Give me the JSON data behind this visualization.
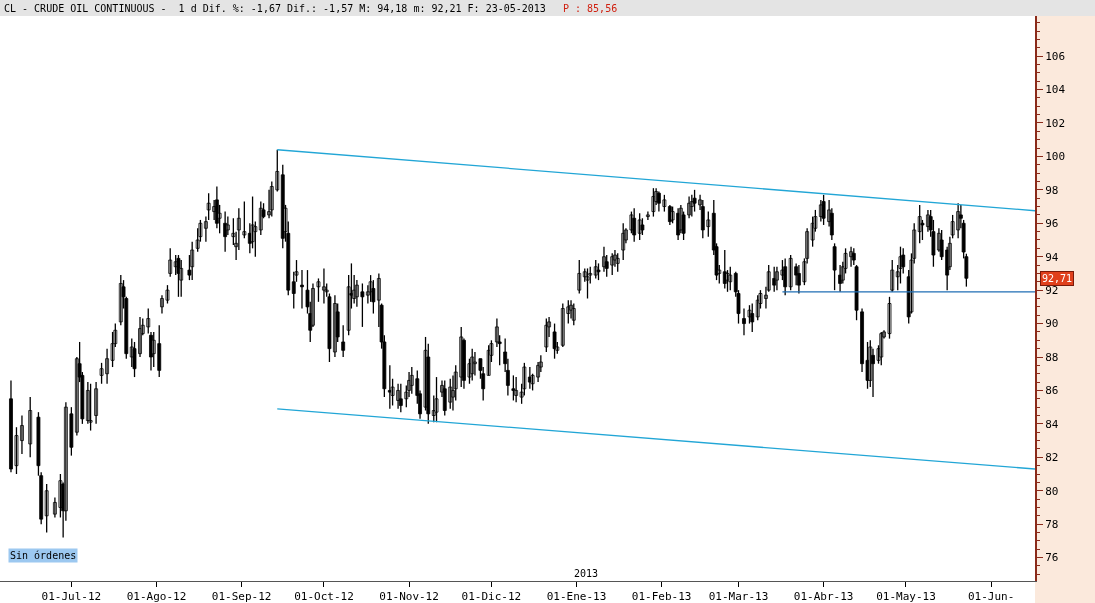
{
  "chart_data": {
    "type": "candlestick",
    "title": "CL - CRUDE OIL CONTINUOUS -  1 d Dif. %: -1,67 Dif.: -1,57 M: 94,18 m: 92,21 F: 23-05-2013",
    "subtitle": "P : 85,56",
    "x": [
      "2012-06-09",
      "2012-06-11",
      "2012-06-13",
      "2012-06-16",
      "2012-06-19",
      "2012-06-20",
      "2012-06-22",
      "2012-06-25",
      "2012-06-27",
      "2012-06-28",
      "2012-06-29",
      "2012-07-01",
      "2012-07-03",
      "2012-07-04",
      "2012-07-05",
      "2012-07-07",
      "2012-07-08",
      "2012-07-10",
      "2012-07-12",
      "2012-07-14",
      "2012-07-16",
      "2012-07-17",
      "2012-07-19",
      "2012-07-20",
      "2012-07-21",
      "2012-07-23",
      "2012-07-24",
      "2012-07-26",
      "2012-07-27",
      "2012-07-29",
      "2012-07-30",
      "2012-07-31",
      "2012-08-02",
      "2012-08-03",
      "2012-08-05",
      "2012-08-06",
      "2012-08-08",
      "2012-08-09",
      "2012-08-10",
      "2012-08-13",
      "2012-08-14",
      "2012-08-16",
      "2012-08-17",
      "2012-08-19",
      "2012-08-20",
      "2012-08-22",
      "2012-08-23",
      "2012-08-24",
      "2012-08-26",
      "2012-08-27",
      "2012-08-29",
      "2012-08-30",
      "2012-08-31",
      "2012-09-02",
      "2012-09-04",
      "2012-09-05",
      "2012-09-06",
      "2012-09-08",
      "2012-09-09",
      "2012-09-11",
      "2012-09-12",
      "2012-09-14",
      "2012-09-16",
      "2012-09-17",
      "2012-09-18",
      "2012-09-20",
      "2012-09-21",
      "2012-09-23",
      "2012-09-25",
      "2012-09-26",
      "2012-09-27",
      "2012-09-29",
      "2012-10-01",
      "2012-10-02",
      "2012-10-03",
      "2012-10-05",
      "2012-10-06",
      "2012-10-08",
      "2012-10-10",
      "2012-10-11",
      "2012-10-12",
      "2012-10-13",
      "2012-10-15",
      "2012-10-17",
      "2012-10-18",
      "2012-10-19",
      "2012-10-21",
      "2012-10-22",
      "2012-10-23",
      "2012-10-25",
      "2012-10-26",
      "2012-10-28",
      "2012-10-29",
      "2012-10-31",
      "2012-11-01",
      "2012-11-02",
      "2012-11-04",
      "2012-11-05",
      "2012-11-07",
      "2012-11-08",
      "2012-11-10",
      "2012-11-11",
      "2012-11-13",
      "2012-11-14",
      "2012-11-16",
      "2012-11-17",
      "2012-11-18",
      "2012-11-20",
      "2012-11-21",
      "2012-11-23",
      "2012-11-24",
      "2012-11-25",
      "2012-11-27",
      "2012-11-28",
      "2012-11-30",
      "2012-12-01",
      "2012-12-03",
      "2012-12-04",
      "2012-12-06",
      "2012-12-07",
      "2012-12-09",
      "2012-12-10",
      "2012-12-12",
      "2012-12-13",
      "2012-12-15",
      "2012-12-16",
      "2012-12-18",
      "2012-12-19",
      "2012-12-21",
      "2012-12-22",
      "2012-12-24",
      "2012-12-25",
      "2012-12-27",
      "2012-12-29",
      "2012-12-30",
      "2012-12-31",
      "2013-01-02",
      "2013-01-04",
      "2013-01-05",
      "2013-01-06",
      "2013-01-08",
      "2013-01-09",
      "2013-01-11",
      "2013-01-12",
      "2013-01-14",
      "2013-01-15",
      "2013-01-16",
      "2013-01-18",
      "2013-01-19",
      "2013-01-21",
      "2013-01-22",
      "2013-01-24",
      "2013-01-25",
      "2013-01-27",
      "2013-01-29",
      "2013-01-30",
      "2013-01-31",
      "2013-02-02",
      "2013-02-04",
      "2013-02-05",
      "2013-02-07",
      "2013-02-08",
      "2013-02-09",
      "2013-02-11",
      "2013-02-12",
      "2013-02-13",
      "2013-02-15",
      "2013-02-16",
      "2013-02-18",
      "2013-02-20",
      "2013-02-21",
      "2013-02-22",
      "2013-02-24",
      "2013-02-25",
      "2013-02-26",
      "2013-02-28",
      "2013-03-01",
      "2013-03-03",
      "2013-03-05",
      "2013-03-06",
      "2013-03-08",
      "2013-03-09",
      "2013-03-11",
      "2013-03-12",
      "2013-03-14",
      "2013-03-15",
      "2013-03-17",
      "2013-03-18",
      "2013-03-20",
      "2013-03-22",
      "2013-03-23",
      "2013-03-25",
      "2013-03-26",
      "2013-03-28",
      "2013-03-29",
      "2013-03-31",
      "2013-04-01",
      "2013-04-03",
      "2013-04-04",
      "2013-04-05",
      "2013-04-07",
      "2013-04-08",
      "2013-04-09",
      "2013-04-11",
      "2013-04-12",
      "2013-04-13",
      "2013-04-15",
      "2013-04-17",
      "2013-04-18",
      "2013-04-19",
      "2013-04-21",
      "2013-04-22",
      "2013-04-23",
      "2013-04-25",
      "2013-04-26",
      "2013-04-28",
      "2013-04-29",
      "2013-04-30",
      "2013-05-02",
      "2013-05-03",
      "2013-05-04",
      "2013-05-06",
      "2013-05-07",
      "2013-05-09",
      "2013-05-10",
      "2013-05-11",
      "2013-05-13",
      "2013-05-14",
      "2013-05-16",
      "2013-05-17",
      "2013-05-18",
      "2013-05-20",
      "2013-05-21",
      "2013-05-22",
      "2013-05-23"
    ],
    "ohlc": [
      [
        85.5,
        86.6,
        81.1,
        81.3
      ],
      [
        81.5,
        83.8,
        81.0,
        83.3
      ],
      [
        83.0,
        84.5,
        82.2,
        83.9
      ],
      [
        82.8,
        85.6,
        82.0,
        84.8
      ],
      [
        84.4,
        84.7,
        80.9,
        81.5
      ],
      [
        80.9,
        81.1,
        78.0,
        78.3
      ],
      [
        78.5,
        80.4,
        77.5,
        80.0
      ],
      [
        78.6,
        79.6,
        78.4,
        79.3
      ],
      [
        79.0,
        81.0,
        78.4,
        80.6
      ],
      [
        80.4,
        80.5,
        77.2,
        78.8
      ],
      [
        78.8,
        85.3,
        78.2,
        85.0
      ],
      [
        84.6,
        85.0,
        82.1,
        82.6
      ],
      [
        83.5,
        88.0,
        83.3,
        87.9
      ],
      [
        87.6,
        88.9,
        86.5,
        86.8
      ],
      [
        86.9,
        87.1,
        84.0,
        84.3
      ],
      [
        84.2,
        86.5,
        84.0,
        86.0
      ],
      [
        84.1,
        86.4,
        83.6,
        84.2
      ],
      [
        84.5,
        86.5,
        84.0,
        86.1
      ],
      [
        86.9,
        87.65,
        86.4,
        87.3
      ],
      [
        87.0,
        88.5,
        86.4,
        87.9
      ],
      [
        87.8,
        89.5,
        87.4,
        88.8
      ],
      [
        88.8,
        90.0,
        88.6,
        89.6
      ],
      [
        90.1,
        92.9,
        89.9,
        92.4
      ],
      [
        92.2,
        92.6,
        90.9,
        91.6
      ],
      [
        91.5,
        91.6,
        87.9,
        88.2
      ],
      [
        88.0,
        89.1,
        87.4,
        88.6
      ],
      [
        88.5,
        88.9,
        86.8,
        87.3
      ],
      [
        88.2,
        90.4,
        88.0,
        89.7
      ],
      [
        89.4,
        90.3,
        89.3,
        89.9
      ],
      [
        89.8,
        90.9,
        89.4,
        90.3
      ],
      [
        89.3,
        89.5,
        87.2,
        88.0
      ],
      [
        88.2,
        89.5,
        87.4,
        89.0
      ],
      [
        88.8,
        89.9,
        86.8,
        87.2
      ],
      [
        91.0,
        91.7,
        90.6,
        91.5
      ],
      [
        91.4,
        92.3,
        91.2,
        92.0
      ],
      [
        93.0,
        94.5,
        92.8,
        93.8
      ],
      [
        93.4,
        94.1,
        92.9,
        93.7
      ],
      [
        93.9,
        94.1,
        91.6,
        93.0
      ],
      [
        92.6,
        93.8,
        91.6,
        93.3
      ],
      [
        93.2,
        94.1,
        92.6,
        92.9
      ],
      [
        93.4,
        94.9,
        92.6,
        94.4
      ],
      [
        94.5,
        95.7,
        94.3,
        95.0
      ],
      [
        95.2,
        96.2,
        94.9,
        96.0
      ],
      [
        95.7,
        96.4,
        94.9,
        96.1
      ],
      [
        96.8,
        97.8,
        96.2,
        97.2
      ],
      [
        96.7,
        97.4,
        96.2,
        97.0
      ],
      [
        97.4,
        98.2,
        95.7,
        96.0
      ],
      [
        96.3,
        97.1,
        95.4,
        96.6
      ],
      [
        96.0,
        96.7,
        94.3,
        95.2
      ],
      [
        95.6,
        96.4,
        95.3,
        95.9
      ],
      [
        95.2,
        96.3,
        94.7,
        95.4
      ],
      [
        94.6,
        95.5,
        93.8,
        94.8
      ],
      [
        95.6,
        96.9,
        94.4,
        96.3
      ],
      [
        95.3,
        97.3,
        95.1,
        95.5
      ],
      [
        95.4,
        96.0,
        94.2,
        94.8
      ],
      [
        94.9,
        97.6,
        94.5,
        95.9
      ],
      [
        95.5,
        96.1,
        94.0,
        95.8
      ],
      [
        95.6,
        97.3,
        95.3,
        96.9
      ],
      [
        96.8,
        97.2,
        96.3,
        96.4
      ],
      [
        96.5,
        98.0,
        96.3,
        96.7
      ],
      [
        96.8,
        98.5,
        96.4,
        98.2
      ],
      [
        98.0,
        100.4,
        97.9,
        99.1
      ],
      [
        98.9,
        99.5,
        94.5,
        95.1
      ],
      [
        95.5,
        97.1,
        94.9,
        96.9
      ],
      [
        95.4,
        96.1,
        91.7,
        92.0
      ],
      [
        92.5,
        93.1,
        90.9,
        91.8
      ],
      [
        92.9,
        93.8,
        92.5,
        93.1
      ],
      [
        92.3,
        93.2,
        90.9,
        92.2
      ],
      [
        92.0,
        93.2,
        90.6,
        91.0
      ],
      [
        90.6,
        91.3,
        88.9,
        89.6
      ],
      [
        89.9,
        92.4,
        89.8,
        92.1
      ],
      [
        92.2,
        92.7,
        91.3,
        92.5
      ],
      [
        92.0,
        93.3,
        91.2,
        92.2
      ],
      [
        91.9,
        92.4,
        91.6,
        92.0
      ],
      [
        91.6,
        91.8,
        87.7,
        88.5
      ],
      [
        88.3,
        91.7,
        88.0,
        91.2
      ],
      [
        90.7,
        91.2,
        88.9,
        89.2
      ],
      [
        88.9,
        89.9,
        88.0,
        88.4
      ],
      [
        89.6,
        92.9,
        89.3,
        92.2
      ],
      [
        91.8,
        93.6,
        90.9,
        91.7
      ],
      [
        91.5,
        92.9,
        91.2,
        92.0
      ],
      [
        91.6,
        92.6,
        91.0,
        92.3
      ],
      [
        91.9,
        92.4,
        89.8,
        91.6
      ],
      [
        91.7,
        92.3,
        91.2,
        91.9
      ],
      [
        91.9,
        92.9,
        91.3,
        92.5
      ],
      [
        92.1,
        92.6,
        90.6,
        91.3
      ],
      [
        91.4,
        93.0,
        89.8,
        92.7
      ],
      [
        91.1,
        91.2,
        88.5,
        88.9
      ],
      [
        88.9,
        89.3,
        85.6,
        86.1
      ],
      [
        86.0,
        87.5,
        84.9,
        85.9
      ],
      [
        85.7,
        86.7,
        85.1,
        86.2
      ],
      [
        85.4,
        86.4,
        84.9,
        86.0
      ],
      [
        85.5,
        86.4,
        84.7,
        85.1
      ],
      [
        85.5,
        86.3,
        85.0,
        85.9
      ],
      [
        86.0,
        87.1,
        85.6,
        86.6
      ],
      [
        86.3,
        87.4,
        85.8,
        86.9
      ],
      [
        86.7,
        87.2,
        85.2,
        85.7
      ],
      [
        85.8,
        86.0,
        84.3,
        84.6
      ],
      [
        85.0,
        89.2,
        84.8,
        88.4
      ],
      [
        88.0,
        88.8,
        84.0,
        84.6
      ],
      [
        84.5,
        85.7,
        84.1,
        84.8
      ],
      [
        84.7,
        86.8,
        84.1,
        85.5
      ],
      [
        85.9,
        86.6,
        85.6,
        86.3
      ],
      [
        86.1,
        86.6,
        84.5,
        84.8
      ],
      [
        85.3,
        86.7,
        84.9,
        86.2
      ],
      [
        85.6,
        86.9,
        84.8,
        86.0
      ],
      [
        86.1,
        87.5,
        85.4,
        87.1
      ],
      [
        86.8,
        89.8,
        86.2,
        89.2
      ],
      [
        89.0,
        89.1,
        86.1,
        86.6
      ],
      [
        86.8,
        87.9,
        86.4,
        87.6
      ],
      [
        87.0,
        88.5,
        86.6,
        88.0
      ],
      [
        87.6,
        88.3,
        86.9,
        87.7
      ],
      [
        87.9,
        87.9,
        86.7,
        87.2
      ],
      [
        87.0,
        87.4,
        85.4,
        86.1
      ],
      [
        86.9,
        88.7,
        86.9,
        88.4
      ],
      [
        88.1,
        89.0,
        87.7,
        88.8
      ],
      [
        88.9,
        90.3,
        88.6,
        89.8
      ],
      [
        88.9,
        89.3,
        87.5,
        88.8
      ],
      [
        88.3,
        89.1,
        87.1,
        87.6
      ],
      [
        87.2,
        87.9,
        85.7,
        86.3
      ],
      [
        86.1,
        86.9,
        85.4,
        86.0
      ],
      [
        85.7,
        86.8,
        85.3,
        86.0
      ],
      [
        85.6,
        86.4,
        85.2,
        85.9
      ],
      [
        86.1,
        87.65,
        85.7,
        87.4
      ],
      [
        86.8,
        87.4,
        86.1,
        86.5
      ],
      [
        86.4,
        87.0,
        86.0,
        86.9
      ],
      [
        86.8,
        87.7,
        86.5,
        87.5
      ],
      [
        87.4,
        88.1,
        87.1,
        87.7
      ],
      [
        88.6,
        90.3,
        88.3,
        89.9
      ],
      [
        89.8,
        90.4,
        89.2,
        90.1
      ],
      [
        89.5,
        90.0,
        87.9,
        88.5
      ],
      [
        88.4,
        88.9,
        88.2,
        88.6
      ],
      [
        88.7,
        91.2,
        88.6,
        90.9
      ],
      [
        90.6,
        91.4,
        90.0,
        91.0
      ],
      [
        90.8,
        91.4,
        90.3,
        91.1
      ],
      [
        90.2,
        91.2,
        89.9,
        90.9
      ],
      [
        92.0,
        93.8,
        91.8,
        93.0
      ],
      [
        92.8,
        93.3,
        92.5,
        93.1
      ],
      [
        92.6,
        93.3,
        91.5,
        92.8
      ],
      [
        92.9,
        93.4,
        92.4,
        93.0
      ],
      [
        92.9,
        93.8,
        92.7,
        93.4
      ],
      [
        93.2,
        93.6,
        92.6,
        93.1
      ],
      [
        93.4,
        94.6,
        93.1,
        94.0
      ],
      [
        93.7,
        94.1,
        92.8,
        93.3
      ],
      [
        93.5,
        94.2,
        92.9,
        94.0
      ],
      [
        93.8,
        94.4,
        93.4,
        94.1
      ],
      [
        93.6,
        94.2,
        93.1,
        93.9
      ],
      [
        94.4,
        96.0,
        93.8,
        95.4
      ],
      [
        95.0,
        95.7,
        94.8,
        95.6
      ],
      [
        95.6,
        96.7,
        95.4,
        96.5
      ],
      [
        96.3,
        96.9,
        94.9,
        95.3
      ],
      [
        95.4,
        96.6,
        95.0,
        96.2
      ],
      [
        95.9,
        96.3,
        95.3,
        95.6
      ],
      [
        96.4,
        96.7,
        96.2,
        96.5
      ],
      [
        96.7,
        98.1,
        96.4,
        97.6
      ],
      [
        97.3,
        98.1,
        97.1,
        97.9
      ],
      [
        97.8,
        97.9,
        96.7,
        97.2
      ],
      [
        97.0,
        97.7,
        96.7,
        97.4
      ],
      [
        97.0,
        97.1,
        95.9,
        96.1
      ],
      [
        96.2,
        97.0,
        96.0,
        96.7
      ],
      [
        96.6,
        96.9,
        95.0,
        95.3
      ],
      [
        95.6,
        97.1,
        95.4,
        96.9
      ],
      [
        96.5,
        96.7,
        95.0,
        95.4
      ],
      [
        96.5,
        97.6,
        96.3,
        97.2
      ],
      [
        97.0,
        97.7,
        96.4,
        97.3
      ],
      [
        97.5,
        98.0,
        96.7,
        97.2
      ],
      [
        97.1,
        97.7,
        96.8,
        97.4
      ],
      [
        97.0,
        97.4,
        95.1,
        95.6
      ],
      [
        95.8,
        96.7,
        95.2,
        96.2
      ],
      [
        96.6,
        97.4,
        94.1,
        94.4
      ],
      [
        94.6,
        94.8,
        92.6,
        92.9
      ],
      [
        93.0,
        93.5,
        92.4,
        93.2
      ],
      [
        93.1,
        94.4,
        92.1,
        92.4
      ],
      [
        92.6,
        93.2,
        91.9,
        93.0
      ],
      [
        92.5,
        93.4,
        92.0,
        92.9
      ],
      [
        93.0,
        93.1,
        91.6,
        91.9
      ],
      [
        91.8,
        92.0,
        90.0,
        90.6
      ],
      [
        90.3,
        90.9,
        89.3,
        90.0
      ],
      [
        90.4,
        91.1,
        90.0,
        90.8
      ],
      [
        90.6,
        91.2,
        89.5,
        90.1
      ],
      [
        90.4,
        91.7,
        90.2,
        91.4
      ],
      [
        91.2,
        92.0,
        90.9,
        91.8
      ],
      [
        91.5,
        92.2,
        90.9,
        91.7
      ],
      [
        92.0,
        93.5,
        91.9,
        93.1
      ],
      [
        92.7,
        93.4,
        91.9,
        92.3
      ],
      [
        92.6,
        93.4,
        92.0,
        93.1
      ],
      [
        92.9,
        93.8,
        92.6,
        93.2
      ],
      [
        93.4,
        93.9,
        91.7,
        92.2
      ],
      [
        92.2,
        94.1,
        92.0,
        93.9
      ],
      [
        93.4,
        93.6,
        92.3,
        92.9
      ],
      [
        93.0,
        93.5,
        91.8,
        92.3
      ],
      [
        92.5,
        93.9,
        92.3,
        93.7
      ],
      [
        93.9,
        95.7,
        93.6,
        95.5
      ],
      [
        95.0,
        96.4,
        94.6,
        96.0
      ],
      [
        95.7,
        96.8,
        95.5,
        96.4
      ],
      [
        96.4,
        97.4,
        96.1,
        97.1
      ],
      [
        97.3,
        97.7,
        95.9,
        96.3
      ],
      [
        96.1,
        97.4,
        95.8,
        96.8
      ],
      [
        96.6,
        96.9,
        95.0,
        95.3
      ],
      [
        94.6,
        94.8,
        92.0,
        93.2
      ],
      [
        92.9,
        93.5,
        91.9,
        92.4
      ],
      [
        92.6,
        93.7,
        92.4,
        93.4
      ],
      [
        93.3,
        94.5,
        93.0,
        94.2
      ],
      [
        94.0,
        94.6,
        93.4,
        94.3
      ],
      [
        94.2,
        94.5,
        93.5,
        93.8
      ],
      [
        93.4,
        93.5,
        90.2,
        90.8
      ],
      [
        90.7,
        90.9,
        87.1,
        87.6
      ],
      [
        87.8,
        88.9,
        86.1,
        86.6
      ],
      [
        86.6,
        89.0,
        86.2,
        88.6
      ],
      [
        88.1,
        88.5,
        85.6,
        87.6
      ],
      [
        87.8,
        88.7,
        87.6,
        88.5
      ],
      [
        88.0,
        89.5,
        87.5,
        89.4
      ],
      [
        89.2,
        89.6,
        89.1,
        89.5
      ],
      [
        89.4,
        91.6,
        89.1,
        91.2
      ],
      [
        92.0,
        93.8,
        91.9,
        93.2
      ],
      [
        92.8,
        93.5,
        92.0,
        93.1
      ],
      [
        93.3,
        94.6,
        92.4,
        94.0
      ],
      [
        94.1,
        94.5,
        93.0,
        93.4
      ],
      [
        92.8,
        93.2,
        90.0,
        90.4
      ],
      [
        90.7,
        94.2,
        90.6,
        93.8
      ],
      [
        93.9,
        96.0,
        93.6,
        95.6
      ],
      [
        95.5,
        97.1,
        94.8,
        96.4
      ],
      [
        96.0,
        96.2,
        95.0,
        95.9
      ],
      [
        95.8,
        96.8,
        95.5,
        96.5
      ],
      [
        96.4,
        96.8,
        95.2,
        95.6
      ],
      [
        95.5,
        96.2,
        93.4,
        94.1
      ],
      [
        94.4,
        95.7,
        94.3,
        95.4
      ],
      [
        95.0,
        95.6,
        93.8,
        94.0
      ],
      [
        94.4,
        94.6,
        92.0,
        92.9
      ],
      [
        93.4,
        95.2,
        93.2,
        94.8
      ],
      [
        95.3,
        96.5,
        95.1,
        96.1
      ],
      [
        95.6,
        97.2,
        95.1,
        96.7
      ],
      [
        96.5,
        97.1,
        95.7,
        96.3
      ],
      [
        96.0,
        96.2,
        93.9,
        94.28
      ],
      [
        94.0,
        94.18,
        92.21,
        92.71
      ]
    ],
    "series": [
      {
        "type": "line",
        "color": "#22a6d6",
        "x": [
          "2012-09-14",
          "2013-06-17"
        ],
        "values": [
          100.4,
          96.75
        ]
      },
      {
        "type": "line",
        "color": "#22a6d6",
        "x": [
          "2012-09-14",
          "2013-06-17"
        ],
        "values": [
          84.9,
          81.3
        ]
      },
      {
        "type": "line",
        "color": "#1f6eb4",
        "x": [
          "2013-03-17",
          "2013-06-17"
        ],
        "values": [
          91.9,
          91.9
        ]
      }
    ],
    "xlim": [
      "2012-06-05",
      "2013-06-17"
    ],
    "xticks": [
      {
        "value": "2012-07-01",
        "label": "01-Jul-12"
      },
      {
        "value": "2012-08-01",
        "label": "01-Ago-12"
      },
      {
        "value": "2012-09-01",
        "label": "01-Sep-12"
      },
      {
        "value": "2012-10-01",
        "label": "01-Oct-12"
      },
      {
        "value": "2012-11-01",
        "label": "01-Nov-12"
      },
      {
        "value": "2012-12-01",
        "label": "01-Dic-12"
      },
      {
        "value": "2013-01-01",
        "label": "01-Ene-13"
      },
      {
        "value": "2013-02-01",
        "label": "01-Feb-13"
      },
      {
        "value": "2013-03-01",
        "label": "01-Mar-13"
      },
      {
        "value": "2013-04-01",
        "label": "01-Abr-13"
      },
      {
        "value": "2013-05-01",
        "label": "01-May-13"
      },
      {
        "value": "2013-06-01",
        "label": "01-Jun-"
      }
    ],
    "annotations": [
      "2013",
      "92,71",
      "Sin órdenes"
    ],
    "ylim": [
      74.6,
      108.4
    ],
    "yticks": [
      76,
      78,
      80,
      82,
      84,
      86,
      88,
      90,
      92,
      94,
      96,
      98,
      100,
      102,
      104,
      106
    ]
  }
}
